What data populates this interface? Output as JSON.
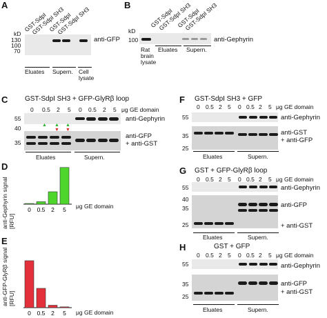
{
  "panelA": {
    "letter": "A",
    "lanes": [
      "GST-SdpI",
      "GST-SdpI SH3",
      "GST-SdpI",
      "GST-SdpI SH3"
    ],
    "kd": "kD",
    "markers": [
      "130",
      "100",
      "70"
    ],
    "antibody": "anti-GFP",
    "groups": [
      "Eluates",
      "Supern.",
      "Cell",
      "lysate"
    ]
  },
  "panelB": {
    "letter": "B",
    "lanes": [
      "GST-SdpI",
      "GST-SdpI SH3",
      "GST-SdpI",
      "GST-SdpI SH3"
    ],
    "kd": "kD",
    "marker": "100 -",
    "antibody": "anti-Gephyrin",
    "groups": [
      "Rat",
      "brain",
      "lysate",
      "Eluates",
      "Supern."
    ]
  },
  "panelC": {
    "letter": "C",
    "title": "GST-SdpI SH3 + GFP-GlyRβ loop",
    "concs": [
      "0",
      "0.5",
      "2",
      "5",
      "0",
      "0.5",
      "2",
      "5"
    ],
    "unit": "μg GE domain",
    "markers": [
      "55",
      "40",
      "35"
    ],
    "antibodies": [
      "anti-Gephyrin",
      "anti-GFP",
      "+ anti-GST"
    ],
    "groups": [
      "Eluates",
      "Supern."
    ]
  },
  "panelD": {
    "letter": "D",
    "ylabel": "anti-Gephyrin signal [RFU]",
    "xunit": "μg GE domain",
    "color": "#4fd62c"
  },
  "panelE": {
    "letter": "E",
    "ylabel": "anti-GFP-GlyRβ signal [RFU]",
    "xunit": "μg GE domain",
    "color": "#e3303a"
  },
  "panelF": {
    "letter": "F",
    "title": "GST-SdpI SH3 + GFP",
    "concs": [
      "0",
      "0.5",
      "2",
      "5",
      "0",
      "0.5",
      "2",
      "5"
    ],
    "unit": "μg GE domain",
    "markers": [
      "55",
      "35",
      "25"
    ],
    "antibodies": [
      "anti-Gephyrin",
      "anti-GST",
      "+ anti-GFP"
    ],
    "groups": [
      "Eluates",
      "Supern."
    ]
  },
  "panelG": {
    "letter": "G",
    "title": "GST + GFP-GlyRβ loop",
    "concs": [
      "0",
      "0.5",
      "2",
      "5",
      "0",
      "0.5",
      "2",
      "5"
    ],
    "unit": "μg GE domain",
    "markers": [
      "55",
      "40",
      "35",
      "25"
    ],
    "antibodies": [
      "anti-Gephyrin",
      "anti-GFP",
      "+ anti-GST"
    ],
    "groups": [
      "Eluates",
      "Supern."
    ]
  },
  "panelH": {
    "letter": "H",
    "title": "GST + GFP",
    "concs": [
      "0",
      "0.5",
      "2",
      "5",
      "0",
      "0.5",
      "2",
      "5"
    ],
    "unit": "μg GE domain",
    "markers": [
      "55",
      "35",
      "25"
    ],
    "antibodies": [
      "anti-Gephyrin",
      "anti-GFP",
      "+ anti-GST"
    ],
    "groups": [
      "Eluates",
      "Supern."
    ]
  },
  "chart_data": [
    {
      "type": "bar",
      "panel": "D",
      "ylabel": "anti-Gephyrin signal [RFU]",
      "xlabel": "μg GE domain",
      "categories": [
        "0",
        "0.5",
        "2",
        "5"
      ],
      "values": [
        1,
        9,
        45,
        133
      ],
      "ylim": [
        0,
        140
      ],
      "color": "#4fd62c"
    },
    {
      "type": "bar",
      "panel": "E",
      "ylabel": "anti-GFP-GlyRβ signal [RFU]",
      "xlabel": "μg GE domain",
      "categories": [
        "0",
        "0.5",
        "2",
        "5"
      ],
      "values": [
        175,
        72,
        9,
        3
      ],
      "ylim": [
        0,
        180
      ],
      "color": "#e3303a"
    }
  ]
}
